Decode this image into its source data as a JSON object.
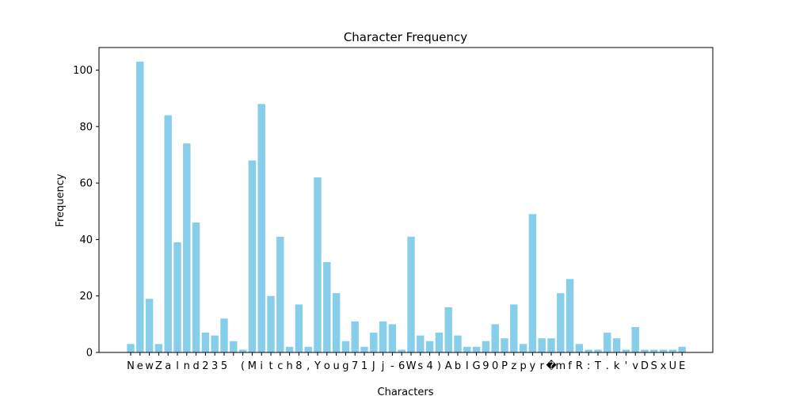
{
  "chart_data": {
    "type": "bar",
    "title": "Character Frequency",
    "xlabel": "Characters",
    "ylabel": "Frequency",
    "ylim": [
      0,
      108
    ],
    "yticks": [
      "0",
      "20",
      "40",
      "60",
      "80",
      "100"
    ],
    "bar_color": "#87CEEB",
    "grid": false,
    "categories": [
      "N",
      "e",
      "w",
      "Z",
      "a",
      "l",
      "n",
      "d",
      "2",
      "3",
      "5",
      " ",
      "(",
      "M",
      "i",
      "t",
      "c",
      "h",
      "8",
      ",",
      "Y",
      "o",
      "u",
      "g",
      "7",
      "1",
      "J",
      "j",
      "-",
      "6",
      "W",
      "s",
      "4",
      ")",
      "A",
      "b",
      "I",
      "G",
      "9",
      "0",
      "P",
      "z",
      "p",
      "y",
      "r",
      "�",
      "m",
      "f",
      "R",
      ":",
      "T",
      ".",
      "k",
      "'",
      "v",
      "D",
      "S",
      "x",
      "U",
      "E"
    ],
    "values": [
      3,
      103,
      19,
      3,
      84,
      39,
      74,
      46,
      7,
      6,
      12,
      4,
      1,
      68,
      88,
      20,
      41,
      2,
      17,
      2,
      62,
      32,
      21,
      4,
      11,
      2,
      7,
      11,
      10,
      1,
      41,
      6,
      4,
      7,
      16,
      6,
      2,
      2,
      4,
      10,
      5,
      17,
      3,
      49,
      5,
      5,
      21,
      26,
      3,
      1,
      1,
      7,
      5,
      1,
      9,
      1,
      1,
      1,
      1,
      2
    ]
  }
}
